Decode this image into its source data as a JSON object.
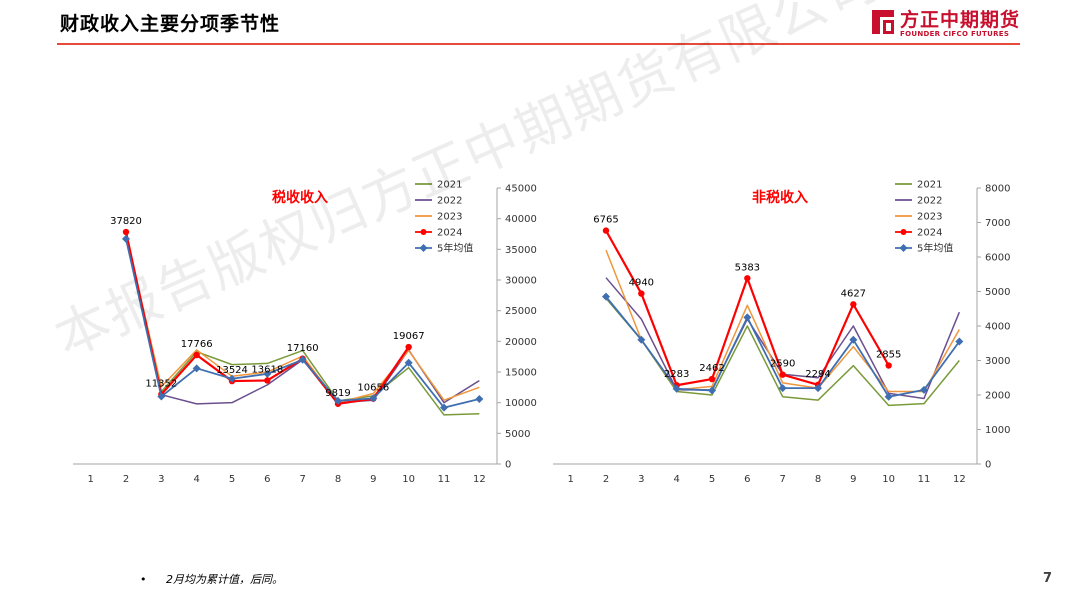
{
  "header": {
    "title": "财政收入主要分项季节性",
    "logo_cn": "方正中期期货",
    "logo_en": "FOUNDER CIFCO FUTURES"
  },
  "colors": {
    "accent": "#e64a3b",
    "brand": "#c8102e",
    "s2021": "#7a9a3a",
    "s2022": "#6b4f8f",
    "s2023": "#f0963c",
    "s2024": "#ff0000",
    "avg": "#3f6fb0"
  },
  "watermark": "本报告版权归方正中期期货有限公司所有",
  "footnote": "2月均为累计值，后同。",
  "page_number": "7",
  "chart_data": [
    {
      "type": "line",
      "title": "税收收入",
      "categories": [
        "1",
        "2",
        "3",
        "4",
        "5",
        "6",
        "7",
        "8",
        "9",
        "10",
        "11",
        "12"
      ],
      "yaxis_side": "right",
      "ylim": [
        0,
        45000
      ],
      "yticks": [
        0,
        5000,
        10000,
        15000,
        20000,
        25000,
        30000,
        35000,
        40000,
        45000
      ],
      "legend_position": "top-right",
      "grid": false,
      "series": [
        {
          "name": "2021",
          "color_key": "s2021",
          "marker": "none",
          "values": [
            null,
            37000,
            11800,
            18300,
            16200,
            16400,
            18500,
            10300,
            11100,
            15700,
            8000,
            8200
          ]
        },
        {
          "name": "2022",
          "color_key": "s2022",
          "marker": "none",
          "values": [
            null,
            37300,
            11300,
            9800,
            10000,
            12900,
            17000,
            10000,
            10400,
            18600,
            10000,
            13600
          ]
        },
        {
          "name": "2023",
          "color_key": "s2023",
          "marker": "none",
          "values": [
            null,
            37500,
            12600,
            18600,
            14300,
            15000,
            17600,
            10000,
            11500,
            18500,
            10400,
            12500
          ]
        },
        {
          "name": "2024",
          "color_key": "s2024",
          "marker": "circle",
          "values": [
            null,
            37820,
            11352,
            17766,
            13524,
            13618,
            17160,
            9819,
            10656,
            19067,
            null,
            null
          ]
        },
        {
          "name": "5年均值",
          "color_key": "avg",
          "marker": "diamond",
          "values": [
            null,
            36700,
            11000,
            15600,
            13900,
            14700,
            17000,
            10300,
            10700,
            16500,
            9200,
            10600
          ]
        }
      ],
      "data_labels": [
        {
          "x": "2",
          "value": "37820"
        },
        {
          "x": "3",
          "value": "11352"
        },
        {
          "x": "4",
          "value": "17766"
        },
        {
          "x": "5",
          "value": "13524"
        },
        {
          "x": "6",
          "value": "13618"
        },
        {
          "x": "7",
          "value": "17160"
        },
        {
          "x": "8",
          "value": "9819"
        },
        {
          "x": "9",
          "value": "10656"
        },
        {
          "x": "10",
          "value": "19067"
        }
      ]
    },
    {
      "type": "line",
      "title": "非税收入",
      "categories": [
        "1",
        "2",
        "3",
        "4",
        "5",
        "6",
        "7",
        "8",
        "9",
        "10",
        "11",
        "12"
      ],
      "yaxis_side": "right",
      "ylim": [
        0,
        8000
      ],
      "yticks": [
        0,
        1000,
        2000,
        3000,
        4000,
        5000,
        6000,
        7000,
        8000
      ],
      "legend_position": "top-right",
      "grid": false,
      "series": [
        {
          "name": "2021",
          "color_key": "s2021",
          "marker": "none",
          "values": [
            null,
            4800,
            3600,
            2100,
            2000,
            4000,
            1950,
            1850,
            2850,
            1700,
            1750,
            3000
          ]
        },
        {
          "name": "2022",
          "color_key": "s2022",
          "marker": "none",
          "values": [
            null,
            5400,
            4200,
            2150,
            2150,
            4200,
            2600,
            2500,
            4000,
            2050,
            1900,
            4400
          ]
        },
        {
          "name": "2023",
          "color_key": "s2023",
          "marker": "none",
          "values": [
            null,
            6200,
            3600,
            2150,
            2250,
            4600,
            2350,
            2200,
            3400,
            2100,
            2100,
            3900
          ]
        },
        {
          "name": "2024",
          "color_key": "s2024",
          "marker": "circle",
          "values": [
            null,
            6765,
            4940,
            2283,
            2462,
            5383,
            2590,
            2294,
            4627,
            2855,
            null,
            null
          ]
        },
        {
          "name": "5年均值",
          "color_key": "avg",
          "marker": "diamond",
          "values": [
            null,
            4850,
            3600,
            2180,
            2130,
            4250,
            2200,
            2200,
            3600,
            1950,
            2150,
            3550
          ]
        }
      ],
      "data_labels": [
        {
          "x": "2",
          "value": "6765"
        },
        {
          "x": "3",
          "value": "4940"
        },
        {
          "x": "4",
          "value": "2283"
        },
        {
          "x": "5",
          "value": "2462"
        },
        {
          "x": "6",
          "value": "5383"
        },
        {
          "x": "7",
          "value": "2590"
        },
        {
          "x": "8",
          "value": "2294"
        },
        {
          "x": "9",
          "value": "4627"
        },
        {
          "x": "10",
          "value": "2855"
        }
      ]
    }
  ]
}
